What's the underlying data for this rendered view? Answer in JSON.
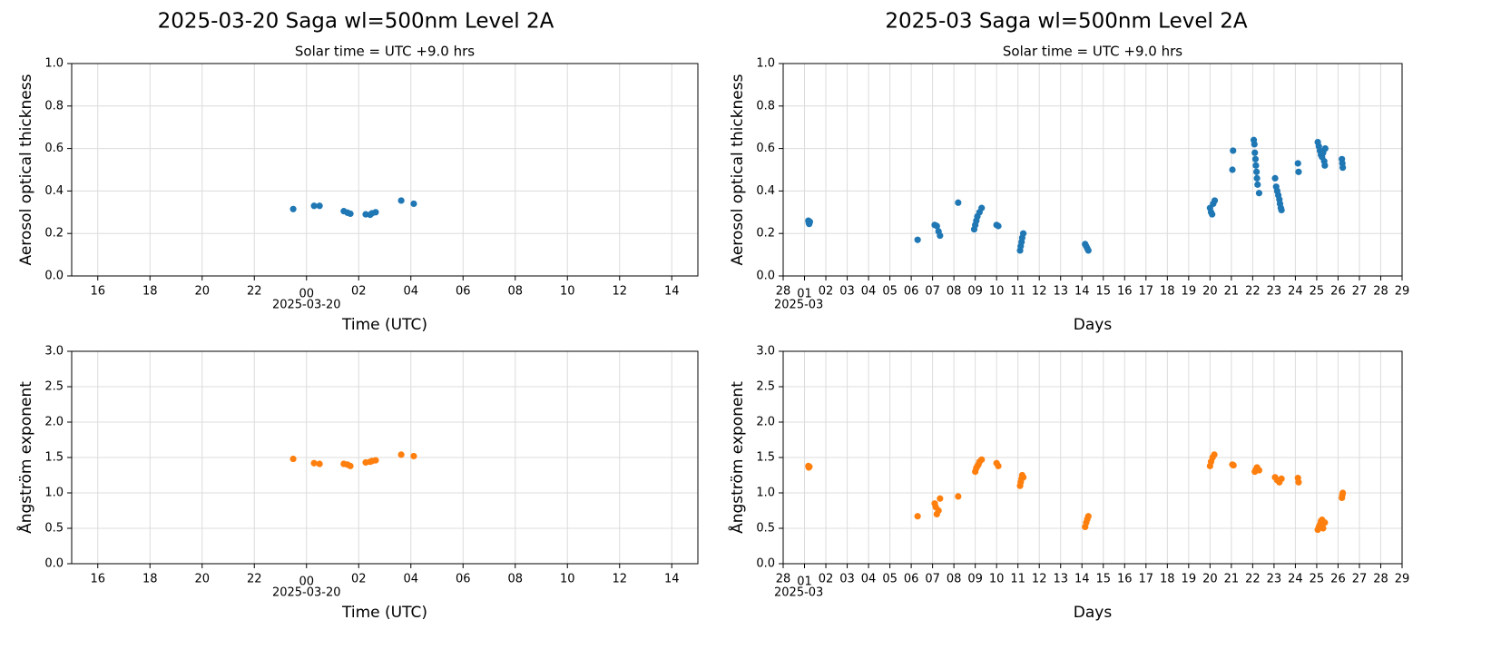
{
  "chart_data": [
    {
      "type": "scatter",
      "title": "2025-03-20  Saga  wl=500nm  Level 2A",
      "subtitle": "Solar time = UTC +9.0 hrs",
      "x_label": "Time (UTC)",
      "y_label": "Aerosol optical thickness",
      "x_offset_label": "2025-03-20",
      "color": "#1f77b4",
      "grid": true,
      "xlim": [
        -9,
        15
      ],
      "xticks": [
        {
          "value": -8,
          "label": "16"
        },
        {
          "value": -6,
          "label": "18"
        },
        {
          "value": -4,
          "label": "20"
        },
        {
          "value": -2,
          "label": "22"
        },
        {
          "value": 0,
          "label": "00"
        },
        {
          "value": 2,
          "label": "02"
        },
        {
          "value": 4,
          "label": "04"
        },
        {
          "value": 6,
          "label": "06"
        },
        {
          "value": 8,
          "label": "08"
        },
        10,
        12,
        14
      ],
      "ylim": [
        0,
        1
      ],
      "yticks": [
        {
          "value": 0,
          "label": "0.0"
        },
        0.2,
        0.4,
        0.6,
        0.8,
        {
          "value": 1,
          "label": "1.0"
        }
      ],
      "x": [
        -0.51,
        0.29,
        0.5,
        1.43,
        1.57,
        1.68,
        2.27,
        2.44,
        2.51,
        2.65,
        3.63,
        4.11
      ],
      "values": [
        0.315,
        0.33,
        0.33,
        0.305,
        0.298,
        0.293,
        0.29,
        0.288,
        0.295,
        0.3,
        0.355,
        0.34
      ]
    },
    {
      "type": "scatter",
      "title": "2025-03  Saga  wl=500nm  Level 2A",
      "subtitle": "Solar time = UTC +9.0 hrs",
      "x_label": "Days",
      "y_label": "Aerosol optical thickness",
      "x_offset_label": "2025-03",
      "color": "#1f77b4",
      "grid": true,
      "xlim": [
        0,
        29
      ],
      "xticks": [
        {
          "value": 0,
          "label": "28"
        },
        {
          "value": 1,
          "label": "01"
        },
        {
          "value": 2,
          "label": "02"
        },
        {
          "value": 3,
          "label": "03"
        },
        {
          "value": 4,
          "label": "04"
        },
        {
          "value": 5,
          "label": "05"
        },
        {
          "value": 6,
          "label": "06"
        },
        {
          "value": 7,
          "label": "07"
        },
        {
          "value": 8,
          "label": "08"
        },
        {
          "value": 9,
          "label": "09"
        },
        10,
        11,
        12,
        13,
        14,
        15,
        16,
        17,
        18,
        19,
        20,
        21,
        22,
        23,
        24,
        25,
        26,
        27,
        28,
        29
      ],
      "ylim": [
        0,
        1
      ],
      "yticks": [
        {
          "value": 0,
          "label": "0.0"
        },
        0.2,
        0.4,
        0.6,
        0.8,
        {
          "value": 1,
          "label": "1.0"
        }
      ],
      "x": [
        1.18,
        1.2,
        1.22,
        1.25,
        6.3,
        7.1,
        7.2,
        7.28,
        7.35,
        8.2,
        8.95,
        9.0,
        9.05,
        9.1,
        9.2,
        9.3,
        10.0,
        10.08,
        11.1,
        11.13,
        11.17,
        11.2,
        11.25,
        14.15,
        14.2,
        14.25,
        14.3,
        20.0,
        20.05,
        20.1,
        20.15,
        20.22,
        21.05,
        21.08,
        22.05,
        22.08,
        22.1,
        22.13,
        22.15,
        22.18,
        22.2,
        22.23,
        22.3,
        23.05,
        23.1,
        23.15,
        23.2,
        23.25,
        23.28,
        23.32,
        23.35,
        24.12,
        24.15,
        25.05,
        25.1,
        25.15,
        25.2,
        25.25,
        25.3,
        25.35,
        25.38,
        25.4,
        26.18,
        26.2,
        26.22
      ],
      "values": [
        0.26,
        0.25,
        0.245,
        0.255,
        0.17,
        0.24,
        0.235,
        0.21,
        0.19,
        0.345,
        0.22,
        0.24,
        0.26,
        0.28,
        0.3,
        0.32,
        0.24,
        0.235,
        0.12,
        0.14,
        0.16,
        0.18,
        0.2,
        0.15,
        0.14,
        0.13,
        0.12,
        0.32,
        0.3,
        0.29,
        0.34,
        0.355,
        0.5,
        0.59,
        0.64,
        0.62,
        0.58,
        0.55,
        0.52,
        0.49,
        0.46,
        0.43,
        0.39,
        0.46,
        0.42,
        0.4,
        0.38,
        0.36,
        0.34,
        0.32,
        0.31,
        0.53,
        0.49,
        0.63,
        0.61,
        0.59,
        0.57,
        0.56,
        0.58,
        0.54,
        0.52,
        0.6,
        0.55,
        0.53,
        0.51
      ]
    },
    {
      "type": "scatter",
      "x_label": "Time (UTC)",
      "y_label": "Ångström exponent",
      "x_offset_label": "2025-03-20",
      "color": "#ff7f0e",
      "grid": true,
      "xlim": [
        -9,
        15
      ],
      "xticks": [
        {
          "value": -8,
          "label": "16"
        },
        {
          "value": -6,
          "label": "18"
        },
        {
          "value": -4,
          "label": "20"
        },
        {
          "value": -2,
          "label": "22"
        },
        {
          "value": 0,
          "label": "00"
        },
        {
          "value": 2,
          "label": "02"
        },
        {
          "value": 4,
          "label": "04"
        },
        {
          "value": 6,
          "label": "06"
        },
        {
          "value": 8,
          "label": "08"
        },
        10,
        12,
        14
      ],
      "ylim": [
        0,
        3
      ],
      "yticks": [
        {
          "value": 0,
          "label": "0.0"
        },
        0.5,
        {
          "value": 1,
          "label": "1.0"
        },
        1.5,
        {
          "value": 2,
          "label": "2.0"
        },
        2.5,
        {
          "value": 3,
          "label": "3.0"
        }
      ],
      "x": [
        -0.51,
        0.29,
        0.5,
        1.43,
        1.57,
        1.68,
        2.27,
        2.44,
        2.51,
        2.65,
        3.63,
        4.11
      ],
      "values": [
        1.48,
        1.42,
        1.41,
        1.41,
        1.4,
        1.38,
        1.43,
        1.44,
        1.45,
        1.46,
        1.54,
        1.52
      ]
    },
    {
      "type": "scatter",
      "x_label": "Days",
      "y_label": "Ångström exponent",
      "x_offset_label": "2025-03",
      "color": "#ff7f0e",
      "grid": true,
      "xlim": [
        0,
        29
      ],
      "xticks": [
        {
          "value": 0,
          "label": "28"
        },
        {
          "value": 1,
          "label": "01"
        },
        {
          "value": 2,
          "label": "02"
        },
        {
          "value": 3,
          "label": "03"
        },
        {
          "value": 4,
          "label": "04"
        },
        {
          "value": 5,
          "label": "05"
        },
        {
          "value": 6,
          "label": "06"
        },
        {
          "value": 7,
          "label": "07"
        },
        {
          "value": 8,
          "label": "08"
        },
        {
          "value": 9,
          "label": "09"
        },
        10,
        11,
        12,
        13,
        14,
        15,
        16,
        17,
        18,
        19,
        20,
        21,
        22,
        23,
        24,
        25,
        26,
        27,
        28,
        29
      ],
      "ylim": [
        0,
        3
      ],
      "yticks": [
        {
          "value": 0,
          "label": "0.0"
        },
        0.5,
        {
          "value": 1,
          "label": "1.0"
        },
        1.5,
        {
          "value": 2,
          "label": "2.0"
        },
        2.5,
        {
          "value": 3,
          "label": "3.0"
        }
      ],
      "x": [
        1.18,
        1.2,
        1.23,
        6.3,
        7.1,
        7.15,
        7.2,
        7.28,
        7.35,
        8.2,
        9.0,
        9.05,
        9.1,
        9.15,
        9.2,
        9.3,
        10.0,
        10.08,
        11.1,
        11.13,
        11.17,
        11.2,
        11.25,
        14.15,
        14.2,
        14.25,
        14.3,
        20.0,
        20.05,
        20.12,
        20.2,
        21.05,
        21.1,
        22.1,
        22.15,
        22.2,
        22.3,
        23.05,
        23.15,
        23.25,
        23.35,
        24.12,
        24.15,
        25.05,
        25.1,
        25.15,
        25.2,
        25.25,
        25.3,
        25.38,
        26.18,
        26.2,
        26.22
      ],
      "values": [
        1.38,
        1.36,
        1.37,
        0.67,
        0.85,
        0.8,
        0.7,
        0.75,
        0.92,
        0.95,
        1.3,
        1.35,
        1.38,
        1.4,
        1.44,
        1.47,
        1.42,
        1.38,
        1.1,
        1.15,
        1.2,
        1.25,
        1.22,
        0.52,
        0.58,
        0.63,
        0.67,
        1.38,
        1.44,
        1.5,
        1.54,
        1.4,
        1.39,
        1.3,
        1.33,
        1.36,
        1.32,
        1.22,
        1.18,
        1.15,
        1.2,
        1.21,
        1.15,
        0.48,
        0.52,
        0.55,
        0.6,
        0.62,
        0.5,
        0.58,
        0.93,
        0.97,
        1.0
      ]
    }
  ]
}
